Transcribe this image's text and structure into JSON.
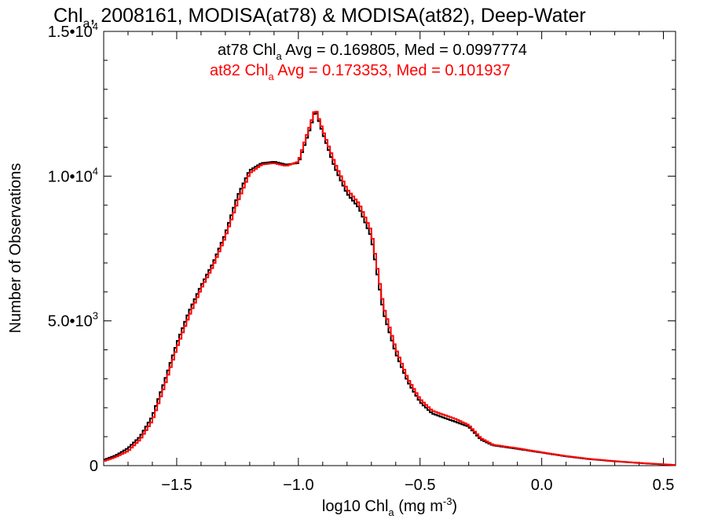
{
  "chart_data": {
    "type": "histogram-step",
    "title": {
      "base": "Chl",
      "sub": "a",
      "rest": ", 2008161, MODISA(at78) & MODISA(at82), Deep-Water"
    },
    "xlabel": {
      "base": "log10 Chl",
      "sub": "a",
      "unit_pre": " (mg m",
      "sup": "-3",
      "unit_post": ")"
    },
    "ylabel": "Number of Observations",
    "xlim": [
      -1.8,
      0.55
    ],
    "ylim": [
      0,
      15000
    ],
    "xticks": [
      {
        "value": -1.5,
        "label": "−1.5"
      },
      {
        "value": -1.0,
        "label": "−1.0"
      },
      {
        "value": -0.5,
        "label": "−0.5"
      },
      {
        "value": 0.0,
        "label": "0.0"
      },
      {
        "value": 0.5,
        "label": "0.5"
      }
    ],
    "yticks": [
      {
        "value": 0,
        "mant": "0",
        "exp": ""
      },
      {
        "value": 5000,
        "mant": "5.0•10",
        "exp": "3"
      },
      {
        "value": 10000,
        "mant": "1.0•10",
        "exp": "4"
      },
      {
        "value": 15000,
        "mant": "1.5•10",
        "exp": "4"
      }
    ],
    "grid": false,
    "legend_position": "top-center",
    "series": [
      {
        "name": "at78",
        "color": "#000000",
        "legend": {
          "pre": "at78 Chl",
          "sub": "a",
          "post": " Avg = 0.169805, Med = 0.0997774"
        },
        "x": [
          -1.8,
          -1.75,
          -1.7,
          -1.65,
          -1.6,
          -1.55,
          -1.5,
          -1.45,
          -1.4,
          -1.35,
          -1.3,
          -1.25,
          -1.2,
          -1.15,
          -1.1,
          -1.05,
          -1.0,
          -0.97,
          -0.95,
          -0.93,
          -0.9,
          -0.85,
          -0.8,
          -0.75,
          -0.7,
          -0.65,
          -0.6,
          -0.55,
          -0.5,
          -0.45,
          -0.4,
          -0.35,
          -0.3,
          -0.25,
          -0.2,
          -0.1,
          0.0,
          0.1,
          0.2,
          0.3,
          0.4,
          0.5,
          0.55
        ],
        "y": [
          200,
          350,
          600,
          1000,
          1700,
          2900,
          4200,
          5300,
          6200,
          7000,
          8000,
          9300,
          10200,
          10450,
          10500,
          10400,
          10450,
          11200,
          11700,
          12300,
          11500,
          10300,
          9400,
          8900,
          7900,
          5300,
          3900,
          2900,
          2200,
          1800,
          1650,
          1500,
          1350,
          900,
          700,
          580,
          450,
          320,
          220,
          150,
          90,
          40,
          20
        ]
      },
      {
        "name": "at82",
        "color": "#ff0000",
        "legend": {
          "pre": "at82 Chl",
          "sub": "a",
          "post": " Avg = 0.173353, Med = 0.101937"
        },
        "x": [
          -1.8,
          -1.75,
          -1.7,
          -1.65,
          -1.6,
          -1.55,
          -1.5,
          -1.45,
          -1.4,
          -1.35,
          -1.3,
          -1.25,
          -1.2,
          -1.15,
          -1.1,
          -1.05,
          -1.0,
          -0.97,
          -0.95,
          -0.93,
          -0.9,
          -0.85,
          -0.8,
          -0.75,
          -0.7,
          -0.65,
          -0.6,
          -0.55,
          -0.5,
          -0.45,
          -0.4,
          -0.35,
          -0.3,
          -0.25,
          -0.2,
          -0.1,
          0.0,
          0.1,
          0.2,
          0.3,
          0.4,
          0.5,
          0.55
        ],
        "y": [
          150,
          300,
          500,
          900,
          1550,
          2750,
          4050,
          5150,
          6100,
          6900,
          7900,
          9100,
          10100,
          10400,
          10450,
          10350,
          10500,
          11300,
          11800,
          12350,
          11600,
          10450,
          9550,
          9050,
          8100,
          5500,
          4050,
          3000,
          2300,
          1900,
          1750,
          1600,
          1400,
          950,
          720,
          600,
          460,
          330,
          230,
          155,
          95,
          45,
          20
        ]
      }
    ]
  }
}
